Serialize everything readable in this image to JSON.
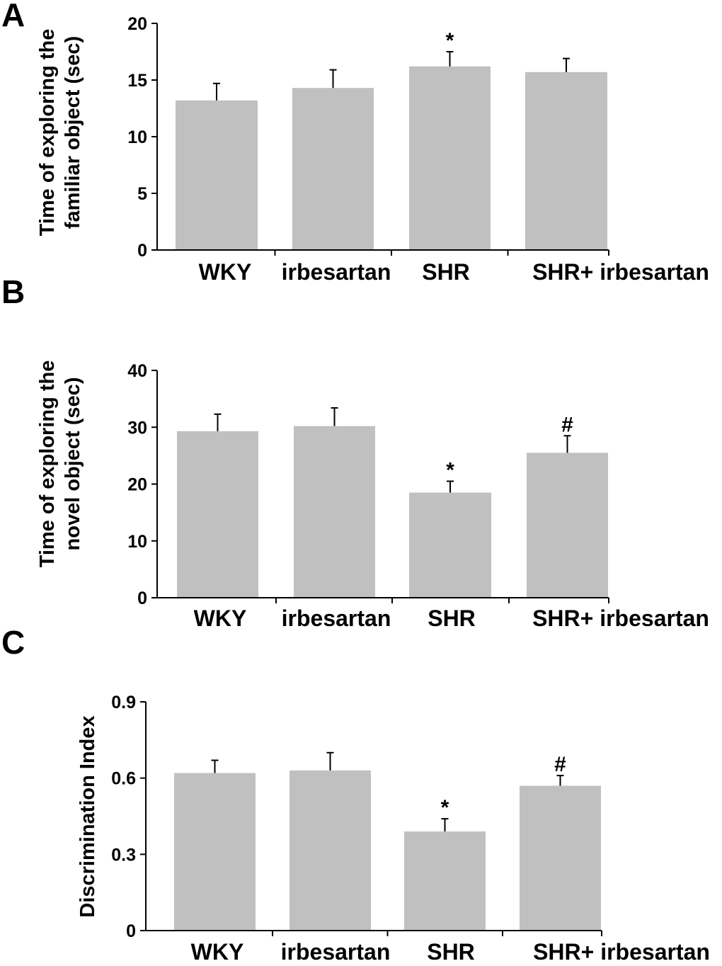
{
  "chart_data": [
    {
      "type": "bar",
      "panel": "A",
      "ylabel_lines": [
        "Time of exploring the",
        "familiar object (sec)"
      ],
      "categories": [
        "WKY",
        "irbesartan",
        "SHR",
        "SHR+ irbesartan"
      ],
      "values": [
        13.2,
        14.3,
        16.2,
        15.7
      ],
      "errors": [
        1.5,
        1.6,
        1.3,
        1.2
      ],
      "annotations": [
        "",
        "",
        "*",
        ""
      ],
      "ylim": [
        0,
        20
      ],
      "yticks": [
        0,
        5,
        10,
        15,
        20
      ],
      "ytick_labels": [
        "0",
        "5",
        "10",
        "15",
        "20"
      ]
    },
    {
      "type": "bar",
      "panel": "B",
      "ylabel_lines": [
        "Time of exploring the",
        "novel object (sec)"
      ],
      "categories": [
        "WKY",
        "irbesartan",
        "SHR",
        "SHR+ irbesartan"
      ],
      "values": [
        29.3,
        30.2,
        18.5,
        25.5
      ],
      "errors": [
        3.0,
        3.2,
        2.0,
        3.0
      ],
      "annotations": [
        "",
        "",
        "*",
        "#"
      ],
      "ylim": [
        0,
        40
      ],
      "yticks": [
        0,
        10,
        20,
        30,
        40
      ],
      "ytick_labels": [
        "0",
        "10",
        "20",
        "30",
        "40"
      ]
    },
    {
      "type": "bar",
      "panel": "C",
      "ylabel_lines": [
        "Discrimination Index"
      ],
      "categories": [
        "WKY",
        "irbesartan",
        "SHR",
        "SHR+ irbesartan"
      ],
      "values": [
        0.62,
        0.63,
        0.39,
        0.57
      ],
      "errors": [
        0.05,
        0.07,
        0.05,
        0.04
      ],
      "annotations": [
        "",
        "",
        "*",
        "#"
      ],
      "ylim": [
        0,
        0.9
      ],
      "yticks": [
        0,
        0.3,
        0.6,
        0.9
      ],
      "ytick_labels": [
        "0",
        "0.3",
        "0.6",
        "0.9"
      ]
    }
  ]
}
